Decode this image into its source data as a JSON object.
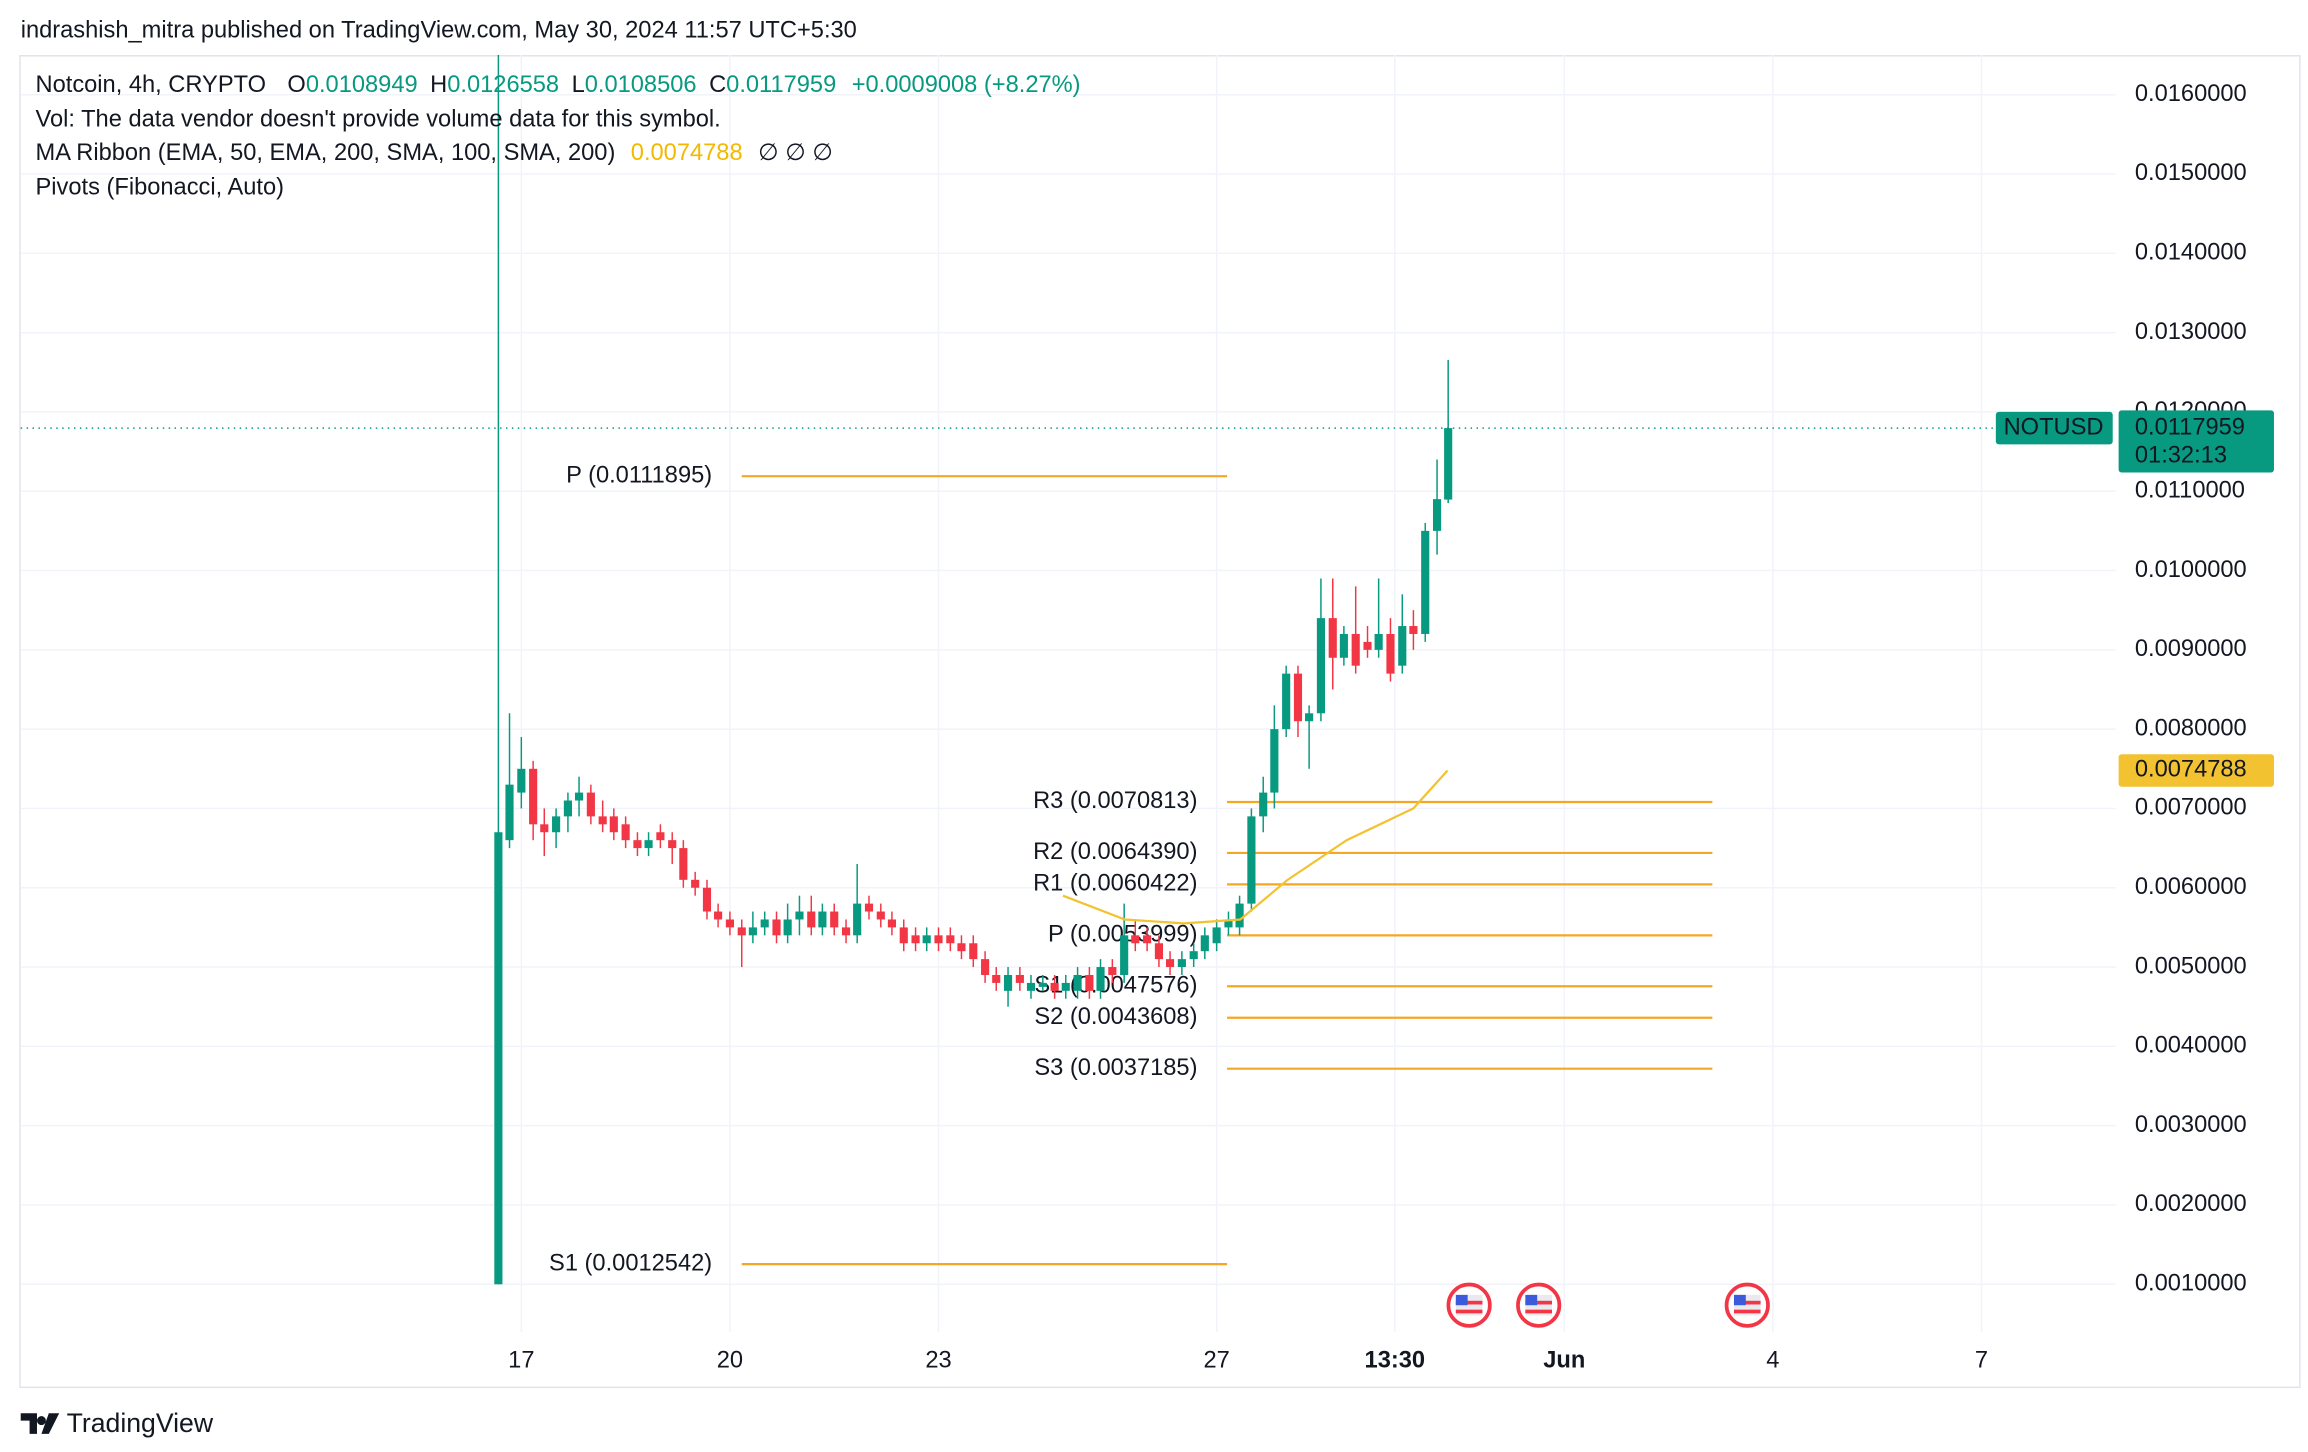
{
  "header": {
    "published": "indrashish_mitra published on TradingView.com, May 30, 2024 11:57 UTC+5:30",
    "symbol": "Notcoin, 4h, CRYPTO",
    "open_letter": "O",
    "high_letter": "H",
    "low_letter": "L",
    "close_letter": "C",
    "change": "+0.0009008 (+8.27%)",
    "volume_note": "Vol: The data vendor doesn't provide volume data for this symbol.",
    "ma_ribbon": "MA Ribbon (EMA, 50, EMA, 200, SMA, 100, SMA, 200)",
    "ma_empty": "∅ ∅ ∅",
    "pivots": "Pivots (Fibonacci, Auto)"
  },
  "footer": {
    "brand": "TradingView"
  },
  "chart_data": {
    "type": "candlestick",
    "up_color": "#089981",
    "down_color": "#f23645",
    "grid": true,
    "symbol_label": "NOTUSD",
    "countdown": "01:32:13",
    "xlim": [
      9.8,
      39.93
    ],
    "ylim": [
      0.0004,
      0.0165
    ],
    "xticks": [
      17,
      20,
      23,
      27,
      {
        "value": 29.5625,
        "label": "13:30"
      },
      {
        "value": 32,
        "label": "Jun"
      },
      {
        "value": 35,
        "label": "4"
      },
      {
        "value": 38,
        "label": "7"
      }
    ],
    "yticks": [
      {
        "value": 0.001,
        "label": "0.0010000"
      },
      {
        "value": 0.002,
        "label": "0.0020000"
      },
      {
        "value": 0.003,
        "label": "0.0030000"
      },
      {
        "value": 0.004,
        "label": "0.0040000"
      },
      {
        "value": 0.005,
        "label": "0.0050000"
      },
      {
        "value": 0.006,
        "label": "0.0060000"
      },
      {
        "value": 0.007,
        "label": "0.0070000"
      },
      {
        "value": 0.008,
        "label": "0.0080000"
      },
      {
        "value": 0.009,
        "label": "0.0090000"
      },
      {
        "value": 0.01,
        "label": "0.0100000"
      },
      {
        "value": 0.011,
        "label": "0.0110000"
      },
      {
        "value": 0.012,
        "label": "0.0120000"
      },
      {
        "value": 0.013,
        "label": "0.0130000"
      },
      {
        "value": 0.014,
        "label": "0.0140000"
      },
      {
        "value": 0.015,
        "label": "0.0150000"
      },
      {
        "value": 0.016,
        "label": "0.0160000"
      }
    ],
    "x": [
      16.67,
      16.83,
      17,
      17.17,
      17.33,
      17.5,
      17.67,
      17.83,
      18,
      18.17,
      18.33,
      18.5,
      18.67,
      18.83,
      19,
      19.17,
      19.33,
      19.5,
      19.67,
      19.83,
      20,
      20.17,
      20.33,
      20.5,
      20.67,
      20.83,
      21,
      21.17,
      21.33,
      21.5,
      21.67,
      21.83,
      22,
      22.17,
      22.33,
      22.5,
      22.67,
      22.83,
      23,
      23.17,
      23.33,
      23.5,
      23.67,
      23.83,
      24,
      24.17,
      24.33,
      24.5,
      24.67,
      24.83,
      25,
      25.17,
      25.33,
      25.5,
      25.67,
      25.83,
      26,
      26.17,
      26.33,
      26.5,
      26.67,
      26.83,
      27,
      27.17,
      27.33,
      27.5,
      27.67,
      27.83,
      28,
      28.17,
      28.33,
      28.5,
      28.67,
      28.83,
      29,
      29.17,
      29.33,
      29.5,
      29.67,
      29.83,
      30,
      30.17,
      30.33
    ],
    "open": [
      0.001,
      0.0066,
      0.0072,
      0.0075,
      0.0068,
      0.0067,
      0.0069,
      0.0071,
      0.0072,
      0.0069,
      0.0069,
      0.0068,
      0.0066,
      0.0065,
      0.0067,
      0.0066,
      0.0065,
      0.0061,
      0.006,
      0.0057,
      0.0056,
      0.0055,
      0.0054,
      0.0055,
      0.0056,
      0.0054,
      0.0056,
      0.0057,
      0.0055,
      0.0057,
      0.0055,
      0.0054,
      0.0058,
      0.0057,
      0.0056,
      0.0055,
      0.0054,
      0.0053,
      0.0054,
      0.0054,
      0.0053,
      0.0053,
      0.0051,
      0.0049,
      0.0047,
      0.0049,
      0.0047,
      0.00475,
      0.0048,
      0.0047,
      0.0047,
      0.0049,
      0.0047,
      0.005,
      0.0049,
      0.0054,
      0.0054,
      0.0053,
      0.0051,
      0.005,
      0.0051,
      0.0052,
      0.0053,
      0.0055,
      0.0055,
      0.0058,
      0.0069,
      0.0072,
      0.008,
      0.0087,
      0.0081,
      0.0082,
      0.0094,
      0.0089,
      0.0092,
      0.0091,
      0.009,
      0.0092,
      0.0088,
      0.0093,
      0.0092,
      0.0105,
      0.0108949
    ],
    "high": [
      0.0165,
      0.0082,
      0.0079,
      0.0076,
      0.007,
      0.007,
      0.0072,
      0.0074,
      0.0073,
      0.0071,
      0.007,
      0.0069,
      0.0067,
      0.0067,
      0.0068,
      0.0067,
      0.0066,
      0.0062,
      0.0061,
      0.0058,
      0.0057,
      0.0056,
      0.0057,
      0.0057,
      0.0057,
      0.0058,
      0.0059,
      0.0059,
      0.0058,
      0.0058,
      0.0056,
      0.0063,
      0.0059,
      0.0058,
      0.0057,
      0.0056,
      0.0055,
      0.0055,
      0.0055,
      0.0055,
      0.0054,
      0.0054,
      0.0052,
      0.005,
      0.005,
      0.005,
      0.0049,
      0.0049,
      0.0049,
      0.0049,
      0.005,
      0.005,
      0.0051,
      0.0051,
      0.0058,
      0.0056,
      0.0055,
      0.0054,
      0.0052,
      0.0052,
      0.0053,
      0.0055,
      0.0056,
      0.0057,
      0.0059,
      0.007,
      0.0074,
      0.0083,
      0.0088,
      0.0088,
      0.0083,
      0.0099,
      0.0099,
      0.0093,
      0.0098,
      0.0093,
      0.0099,
      0.0094,
      0.0097,
      0.0095,
      0.0106,
      0.0114,
      0.0126558
    ],
    "low": [
      0.001,
      0.0065,
      0.007,
      0.0066,
      0.0064,
      0.0065,
      0.0067,
      0.0069,
      0.0068,
      0.0067,
      0.0066,
      0.0065,
      0.0064,
      0.0064,
      0.0065,
      0.0063,
      0.006,
      0.0059,
      0.0056,
      0.0055,
      0.0054,
      0.005,
      0.0053,
      0.0054,
      0.0053,
      0.0053,
      0.0054,
      0.0054,
      0.0054,
      0.0054,
      0.0053,
      0.0053,
      0.0056,
      0.0055,
      0.0054,
      0.0052,
      0.0052,
      0.0052,
      0.0052,
      0.0052,
      0.0051,
      0.005,
      0.0048,
      0.0047,
      0.0045,
      0.0047,
      0.0046,
      0.0047,
      0.0046,
      0.0046,
      0.0046,
      0.0046,
      0.0046,
      0.0048,
      0.0048,
      0.0052,
      0.0052,
      0.005,
      0.0049,
      0.0049,
      0.005,
      0.0051,
      0.0052,
      0.0054,
      0.0054,
      0.0057,
      0.0067,
      0.007,
      0.0079,
      0.0079,
      0.0075,
      0.0081,
      0.0085,
      0.0088,
      0.0087,
      0.0089,
      0.0089,
      0.0086,
      0.0087,
      0.009,
      0.0091,
      0.0102,
      0.0108506
    ],
    "close": [
      0.0067,
      0.0073,
      0.0075,
      0.0068,
      0.0067,
      0.0069,
      0.0071,
      0.0072,
      0.0069,
      0.0068,
      0.0067,
      0.0066,
      0.0065,
      0.0066,
      0.0066,
      0.0065,
      0.0061,
      0.006,
      0.0057,
      0.0056,
      0.0055,
      0.0054,
      0.0055,
      0.0056,
      0.0054,
      0.0056,
      0.0057,
      0.0055,
      0.0057,
      0.0055,
      0.0054,
      0.0058,
      0.0057,
      0.0056,
      0.0055,
      0.0053,
      0.0053,
      0.0054,
      0.0053,
      0.0053,
      0.0052,
      0.0051,
      0.0049,
      0.0048,
      0.0049,
      0.0048,
      0.0048,
      0.0048,
      0.0047,
      0.0048,
      0.0049,
      0.0047,
      0.005,
      0.0049,
      0.0054,
      0.0053,
      0.0053,
      0.0051,
      0.005,
      0.0051,
      0.0052,
      0.0054,
      0.0055,
      0.0056,
      0.0058,
      0.0069,
      0.0072,
      0.008,
      0.0087,
      0.0081,
      0.0082,
      0.0094,
      0.0089,
      0.0092,
      0.0088,
      0.009,
      0.0092,
      0.0087,
      0.0093,
      0.0092,
      0.0105,
      0.0109,
      0.0117959
    ],
    "ma": {
      "color": "#f2c230",
      "x": [
        24.79,
        25.68,
        26.53,
        27.34,
        28.02,
        28.87,
        29.83,
        30.32
      ],
      "values": [
        0.0059,
        0.0056,
        0.00555,
        0.0056,
        0.0061,
        0.0066,
        0.007,
        0.0074788
      ]
    },
    "pivot_color": "#f5a623",
    "pivots": [
      {
        "label": "P (0.0111895)",
        "value": 0.0111895,
        "x": [
          20.17,
          27.15
        ]
      },
      {
        "label": "S1 (0.0012542)",
        "value": 0.0012542,
        "x": [
          20.17,
          27.15
        ]
      },
      {
        "label": "R3 (0.0070813)",
        "value": 0.0070813,
        "x": [
          27.15,
          34.13
        ]
      },
      {
        "label": "R2 (0.0064390)",
        "value": 0.006439,
        "x": [
          27.15,
          34.13
        ]
      },
      {
        "label": "R1 (0.0060422)",
        "value": 0.0060422,
        "x": [
          27.15,
          34.13
        ]
      },
      {
        "label": "P (0.0053999)",
        "value": 0.0053999,
        "x": [
          27.15,
          34.13
        ]
      },
      {
        "label": "S1 (0.0047576)",
        "value": 0.0047576,
        "x": [
          27.15,
          34.13
        ]
      },
      {
        "label": "S2 (0.0043608)",
        "value": 0.0043608,
        "x": [
          27.15,
          34.13
        ]
      },
      {
        "label": "S3 (0.0037185)",
        "value": 0.0037185,
        "x": [
          27.15,
          34.13
        ]
      }
    ]
  }
}
